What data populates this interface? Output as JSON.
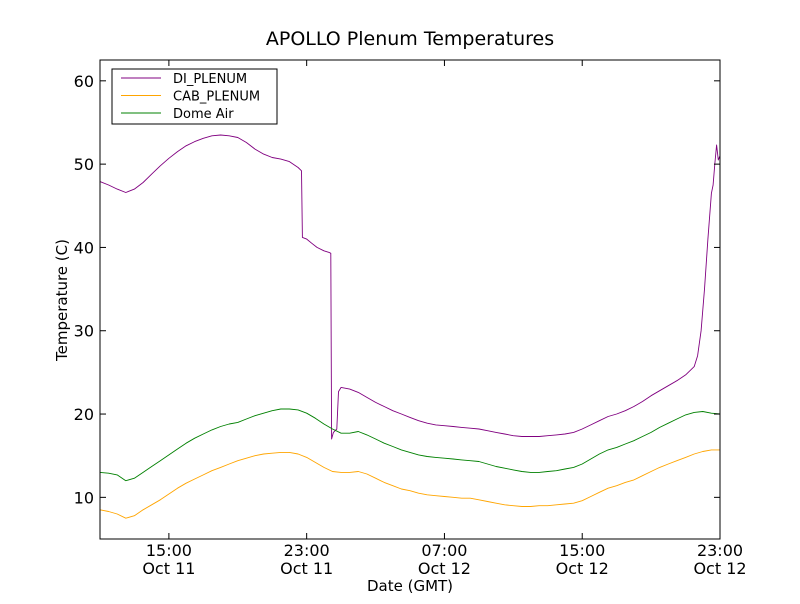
{
  "chart_data": {
    "type": "line",
    "title": "APOLLO Plenum Temperatures",
    "xlabel": "Date (GMT)",
    "ylabel": "Temperature (C)",
    "xlim": [
      11.0,
      47.0
    ],
    "ylim": [
      5,
      62.5
    ],
    "x_unit": "hours since Oct 11 00:00 GMT",
    "yticks": [
      10,
      20,
      30,
      40,
      50,
      60
    ],
    "xticks": [
      {
        "x": 15,
        "time": "15:00",
        "date": "Oct 11"
      },
      {
        "x": 23,
        "time": "23:00",
        "date": "Oct 11"
      },
      {
        "x": 31,
        "time": "07:00",
        "date": "Oct 12"
      },
      {
        "x": 39,
        "time": "15:00",
        "date": "Oct 12"
      },
      {
        "x": 47,
        "time": "23:00",
        "date": "Oct 12"
      }
    ],
    "legend_position": "top-left",
    "series": [
      {
        "name": "DI_PLENUM",
        "color": "#800080",
        "points": [
          [
            11.0,
            47.9
          ],
          [
            11.5,
            47.5
          ],
          [
            12.0,
            47.0
          ],
          [
            12.5,
            46.6
          ],
          [
            13.0,
            47.0
          ],
          [
            13.5,
            47.8
          ],
          [
            14.0,
            48.8
          ],
          [
            14.5,
            49.8
          ],
          [
            15.0,
            50.7
          ],
          [
            15.5,
            51.5
          ],
          [
            16.0,
            52.2
          ],
          [
            16.5,
            52.7
          ],
          [
            17.0,
            53.1
          ],
          [
            17.5,
            53.4
          ],
          [
            18.0,
            53.5
          ],
          [
            18.5,
            53.4
          ],
          [
            19.0,
            53.2
          ],
          [
            19.5,
            52.6
          ],
          [
            20.0,
            51.8
          ],
          [
            20.5,
            51.2
          ],
          [
            21.0,
            50.8
          ],
          [
            21.5,
            50.6
          ],
          [
            22.0,
            50.3
          ],
          [
            22.5,
            49.6
          ],
          [
            22.7,
            49.2
          ],
          [
            22.75,
            41.2
          ],
          [
            23.0,
            41.0
          ],
          [
            23.3,
            40.5
          ],
          [
            23.6,
            40.0
          ],
          [
            24.0,
            39.6
          ],
          [
            24.3,
            39.4
          ],
          [
            24.4,
            39.3
          ],
          [
            24.45,
            17.0
          ],
          [
            24.55,
            17.8
          ],
          [
            24.75,
            18.2
          ],
          [
            24.85,
            22.7
          ],
          [
            25.0,
            23.2
          ],
          [
            25.5,
            23.0
          ],
          [
            26.0,
            22.6
          ],
          [
            26.5,
            22.0
          ],
          [
            27.0,
            21.4
          ],
          [
            27.5,
            20.9
          ],
          [
            28.0,
            20.4
          ],
          [
            28.5,
            20.0
          ],
          [
            29.0,
            19.6
          ],
          [
            29.5,
            19.2
          ],
          [
            30.0,
            18.9
          ],
          [
            30.5,
            18.7
          ],
          [
            31.0,
            18.6
          ],
          [
            31.5,
            18.5
          ],
          [
            32.0,
            18.4
          ],
          [
            32.5,
            18.3
          ],
          [
            33.0,
            18.2
          ],
          [
            33.5,
            18.0
          ],
          [
            34.0,
            17.8
          ],
          [
            34.5,
            17.6
          ],
          [
            35.0,
            17.4
          ],
          [
            35.5,
            17.3
          ],
          [
            36.0,
            17.3
          ],
          [
            36.5,
            17.3
          ],
          [
            37.0,
            17.4
          ],
          [
            37.5,
            17.5
          ],
          [
            38.0,
            17.6
          ],
          [
            38.5,
            17.8
          ],
          [
            39.0,
            18.2
          ],
          [
            39.5,
            18.7
          ],
          [
            40.0,
            19.2
          ],
          [
            40.5,
            19.7
          ],
          [
            41.0,
            20.0
          ],
          [
            41.5,
            20.4
          ],
          [
            42.0,
            20.9
          ],
          [
            42.5,
            21.5
          ],
          [
            43.0,
            22.2
          ],
          [
            43.5,
            22.8
          ],
          [
            44.0,
            23.4
          ],
          [
            44.5,
            24.0
          ],
          [
            45.0,
            24.7
          ],
          [
            45.5,
            25.7
          ],
          [
            45.7,
            27.0
          ],
          [
            45.9,
            30.0
          ],
          [
            46.1,
            35.0
          ],
          [
            46.3,
            41.0
          ],
          [
            46.5,
            46.5
          ],
          [
            46.6,
            47.5
          ],
          [
            46.7,
            50.0
          ],
          [
            46.8,
            52.3
          ],
          [
            46.9,
            50.5
          ],
          [
            47.0,
            51.0
          ]
        ]
      },
      {
        "name": "CAB_PLENUM",
        "color": "#ffa500",
        "points": [
          [
            11.0,
            8.5
          ],
          [
            11.5,
            8.3
          ],
          [
            12.0,
            8.0
          ],
          [
            12.5,
            7.5
          ],
          [
            13.0,
            7.8
          ],
          [
            13.5,
            8.5
          ],
          [
            14.0,
            9.1
          ],
          [
            14.5,
            9.7
          ],
          [
            15.0,
            10.4
          ],
          [
            15.5,
            11.1
          ],
          [
            16.0,
            11.7
          ],
          [
            16.5,
            12.2
          ],
          [
            17.0,
            12.7
          ],
          [
            17.5,
            13.2
          ],
          [
            18.0,
            13.6
          ],
          [
            18.5,
            14.0
          ],
          [
            19.0,
            14.4
          ],
          [
            19.5,
            14.7
          ],
          [
            20.0,
            15.0
          ],
          [
            20.5,
            15.2
          ],
          [
            21.0,
            15.3
          ],
          [
            21.5,
            15.4
          ],
          [
            22.0,
            15.4
          ],
          [
            22.5,
            15.2
          ],
          [
            23.0,
            14.8
          ],
          [
            23.5,
            14.2
          ],
          [
            24.0,
            13.6
          ],
          [
            24.5,
            13.1
          ],
          [
            25.0,
            13.0
          ],
          [
            25.5,
            13.0
          ],
          [
            26.0,
            13.1
          ],
          [
            26.5,
            12.8
          ],
          [
            27.0,
            12.3
          ],
          [
            27.5,
            11.8
          ],
          [
            28.0,
            11.4
          ],
          [
            28.5,
            11.0
          ],
          [
            29.0,
            10.8
          ],
          [
            29.5,
            10.5
          ],
          [
            30.0,
            10.3
          ],
          [
            30.5,
            10.2
          ],
          [
            31.0,
            10.1
          ],
          [
            31.5,
            10.0
          ],
          [
            32.0,
            9.9
          ],
          [
            32.5,
            9.9
          ],
          [
            33.0,
            9.7
          ],
          [
            33.5,
            9.5
          ],
          [
            34.0,
            9.3
          ],
          [
            34.5,
            9.1
          ],
          [
            35.0,
            9.0
          ],
          [
            35.5,
            8.9
          ],
          [
            36.0,
            8.9
          ],
          [
            36.5,
            9.0
          ],
          [
            37.0,
            9.0
          ],
          [
            37.5,
            9.1
          ],
          [
            38.0,
            9.2
          ],
          [
            38.5,
            9.3
          ],
          [
            39.0,
            9.6
          ],
          [
            39.5,
            10.1
          ],
          [
            40.0,
            10.6
          ],
          [
            40.5,
            11.1
          ],
          [
            41.0,
            11.4
          ],
          [
            41.5,
            11.8
          ],
          [
            42.0,
            12.1
          ],
          [
            42.5,
            12.6
          ],
          [
            43.0,
            13.1
          ],
          [
            43.5,
            13.6
          ],
          [
            44.0,
            14.0
          ],
          [
            44.5,
            14.4
          ],
          [
            45.0,
            14.8
          ],
          [
            45.5,
            15.2
          ],
          [
            46.0,
            15.5
          ],
          [
            46.5,
            15.7
          ],
          [
            47.0,
            15.7
          ]
        ]
      },
      {
        "name": "Dome Air",
        "color": "#008000",
        "points": [
          [
            11.0,
            13.0
          ],
          [
            11.5,
            12.9
          ],
          [
            12.0,
            12.7
          ],
          [
            12.5,
            12.0
          ],
          [
            13.0,
            12.3
          ],
          [
            13.5,
            13.0
          ],
          [
            14.0,
            13.7
          ],
          [
            14.5,
            14.4
          ],
          [
            15.0,
            15.1
          ],
          [
            15.5,
            15.8
          ],
          [
            16.0,
            16.5
          ],
          [
            16.5,
            17.1
          ],
          [
            17.0,
            17.6
          ],
          [
            17.5,
            18.1
          ],
          [
            18.0,
            18.5
          ],
          [
            18.5,
            18.8
          ],
          [
            19.0,
            19.0
          ],
          [
            19.5,
            19.4
          ],
          [
            20.0,
            19.8
          ],
          [
            20.5,
            20.1
          ],
          [
            21.0,
            20.4
          ],
          [
            21.5,
            20.6
          ],
          [
            22.0,
            20.6
          ],
          [
            22.5,
            20.5
          ],
          [
            23.0,
            20.1
          ],
          [
            23.5,
            19.5
          ],
          [
            24.0,
            18.8
          ],
          [
            24.5,
            18.2
          ],
          [
            25.0,
            17.7
          ],
          [
            25.5,
            17.7
          ],
          [
            26.0,
            17.9
          ],
          [
            26.5,
            17.5
          ],
          [
            27.0,
            17.0
          ],
          [
            27.5,
            16.5
          ],
          [
            28.0,
            16.1
          ],
          [
            28.5,
            15.7
          ],
          [
            29.0,
            15.4
          ],
          [
            29.5,
            15.1
          ],
          [
            30.0,
            14.9
          ],
          [
            30.5,
            14.8
          ],
          [
            31.0,
            14.7
          ],
          [
            31.5,
            14.6
          ],
          [
            32.0,
            14.5
          ],
          [
            32.5,
            14.4
          ],
          [
            33.0,
            14.3
          ],
          [
            33.5,
            14.0
          ],
          [
            34.0,
            13.7
          ],
          [
            34.5,
            13.5
          ],
          [
            35.0,
            13.3
          ],
          [
            35.5,
            13.1
          ],
          [
            36.0,
            13.0
          ],
          [
            36.5,
            13.0
          ],
          [
            37.0,
            13.1
          ],
          [
            37.5,
            13.2
          ],
          [
            38.0,
            13.4
          ],
          [
            38.5,
            13.6
          ],
          [
            39.0,
            14.0
          ],
          [
            39.5,
            14.6
          ],
          [
            40.0,
            15.2
          ],
          [
            40.5,
            15.7
          ],
          [
            41.0,
            16.0
          ],
          [
            41.5,
            16.4
          ],
          [
            42.0,
            16.8
          ],
          [
            42.5,
            17.3
          ],
          [
            43.0,
            17.8
          ],
          [
            43.5,
            18.4
          ],
          [
            44.0,
            18.9
          ],
          [
            44.5,
            19.4
          ],
          [
            45.0,
            19.9
          ],
          [
            45.5,
            20.2
          ],
          [
            46.0,
            20.3
          ],
          [
            46.5,
            20.1
          ],
          [
            47.0,
            20.0
          ]
        ]
      }
    ]
  }
}
